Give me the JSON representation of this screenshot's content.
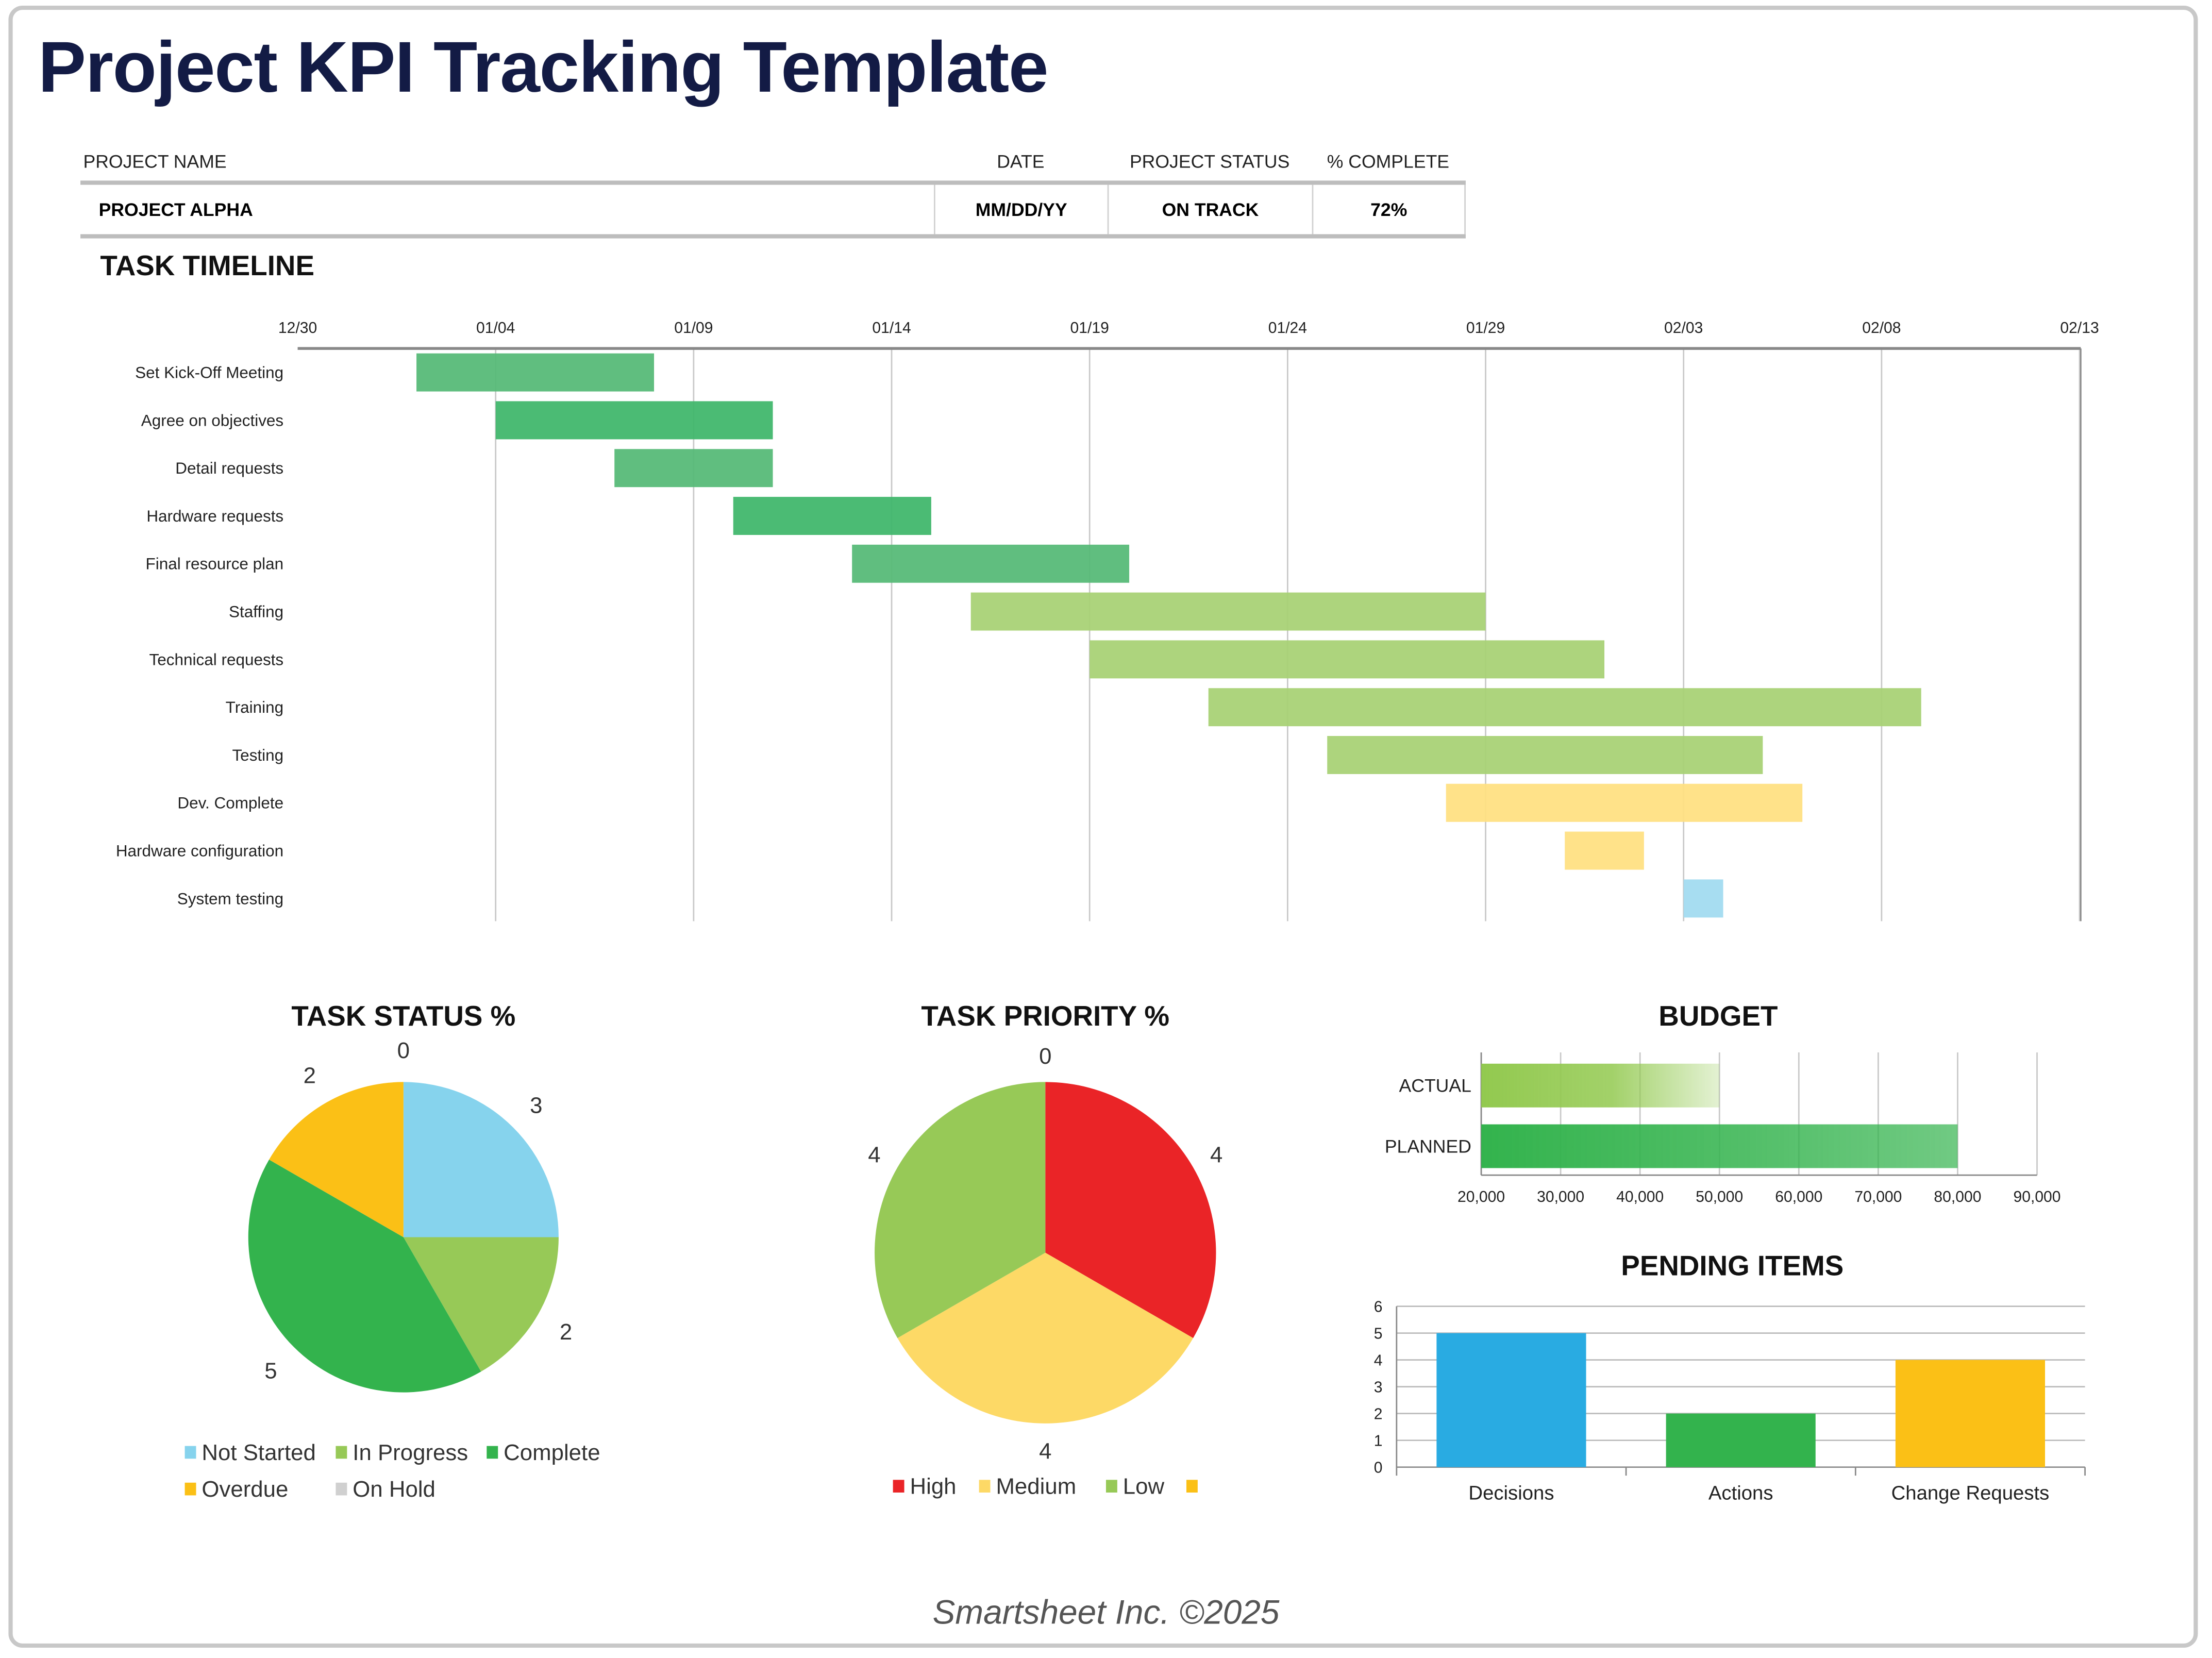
{
  "title": "Project KPI Tracking Template",
  "project": {
    "labels": {
      "name": "PROJECT NAME",
      "date": "DATE",
      "status": "PROJECT STATUS",
      "complete": "% COMPLETE"
    },
    "values": {
      "name": "PROJECT ALPHA",
      "date": "MM/DD/YY",
      "status": "ON TRACK",
      "complete": "72%"
    }
  },
  "sections": {
    "timeline": "TASK TIMELINE",
    "status": "TASK STATUS %",
    "priority": "TASK PRIORITY %",
    "budget": "BUDGET",
    "pending": "PENDING ITEMS"
  },
  "footer": "Smartsheet Inc. ©2025",
  "chart_data": [
    {
      "type": "bar",
      "orientation": "gantt",
      "title": "TASK TIMELINE",
      "x_ticks": [
        "12/30",
        "01/04",
        "01/09",
        "01/14",
        "01/19",
        "01/24",
        "01/29",
        "02/03",
        "02/08",
        "02/13"
      ],
      "xlim": [
        "12/30",
        "02/13"
      ],
      "grid": true,
      "tasks": [
        {
          "name": "Set Kick-Off Meeting",
          "start": "01/02",
          "end": "01/08",
          "color": "#57bb78"
        },
        {
          "name": "Agree on objectives",
          "start": "01/04",
          "end": "01/11",
          "color": "#41b76d"
        },
        {
          "name": "Detail requests",
          "start": "01/07",
          "end": "01/11",
          "color": "#57bb78"
        },
        {
          "name": "Hardware requests",
          "start": "01/10",
          "end": "01/15",
          "color": "#41b76d"
        },
        {
          "name": "Final resource plan",
          "start": "01/13",
          "end": "01/20",
          "color": "#57bb78"
        },
        {
          "name": "Staffing",
          "start": "01/16",
          "end": "01/29",
          "color": "#a9d276"
        },
        {
          "name": "Technical requests",
          "start": "01/19",
          "end": "02/01",
          "color": "#a9d276"
        },
        {
          "name": "Training",
          "start": "01/22",
          "end": "02/09",
          "color": "#a9d276"
        },
        {
          "name": "Testing",
          "start": "01/25",
          "end": "02/05",
          "color": "#a9d276"
        },
        {
          "name": "Dev. Complete",
          "start": "01/28",
          "end": "02/06",
          "color": "#ffe083"
        },
        {
          "name": "Hardware configuration",
          "start": "01/31",
          "end": "02/02",
          "color": "#ffe083"
        },
        {
          "name": "System testing",
          "start": "02/03",
          "end": "02/04",
          "color": "#a2dbf0"
        }
      ]
    },
    {
      "type": "pie",
      "title": "TASK STATUS %",
      "legend": "bottom",
      "slices": [
        {
          "name": "Not Started",
          "value": 3,
          "color": "#86d3ed"
        },
        {
          "name": "In Progress",
          "value": 2,
          "color": "#97c957"
        },
        {
          "name": "Complete",
          "value": 5,
          "color": "#33b34d"
        },
        {
          "name": "Overdue",
          "value": 2,
          "color": "#fbc016"
        },
        {
          "name": "On Hold",
          "value": 0,
          "color": "#d0d0d0"
        }
      ]
    },
    {
      "type": "pie",
      "title": "TASK PRIORITY %",
      "legend": "bottom",
      "slices": [
        {
          "name": "High",
          "value": 4,
          "color": "#ea2427"
        },
        {
          "name": "Medium",
          "value": 4,
          "color": "#fdd966"
        },
        {
          "name": "Low",
          "value": 4,
          "color": "#97c957"
        },
        {
          "name": "",
          "value": 0,
          "color": "#fbc016"
        }
      ]
    },
    {
      "type": "bar",
      "orientation": "horizontal",
      "title": "BUDGET",
      "categories": [
        "ACTUAL",
        "PLANNED"
      ],
      "values": [
        50000,
        80000
      ],
      "colors": [
        "#92c94f",
        "#33b34d"
      ],
      "xlim": [
        20000,
        90000
      ],
      "x_ticks": [
        "20,000",
        "30,000",
        "40,000",
        "50,000",
        "60,000",
        "70,000",
        "80,000",
        "90,000"
      ],
      "grid": true
    },
    {
      "type": "bar",
      "title": "PENDING ITEMS",
      "categories": [
        "Decisions",
        "Actions",
        "Change Requests"
      ],
      "values": [
        5,
        2,
        4
      ],
      "colors": [
        "#29abe2",
        "#33b34d",
        "#fbc016"
      ],
      "ylim": [
        0,
        6
      ],
      "y_ticks": [
        "0",
        "1",
        "2",
        "3",
        "4",
        "5",
        "6"
      ],
      "grid": true
    }
  ]
}
